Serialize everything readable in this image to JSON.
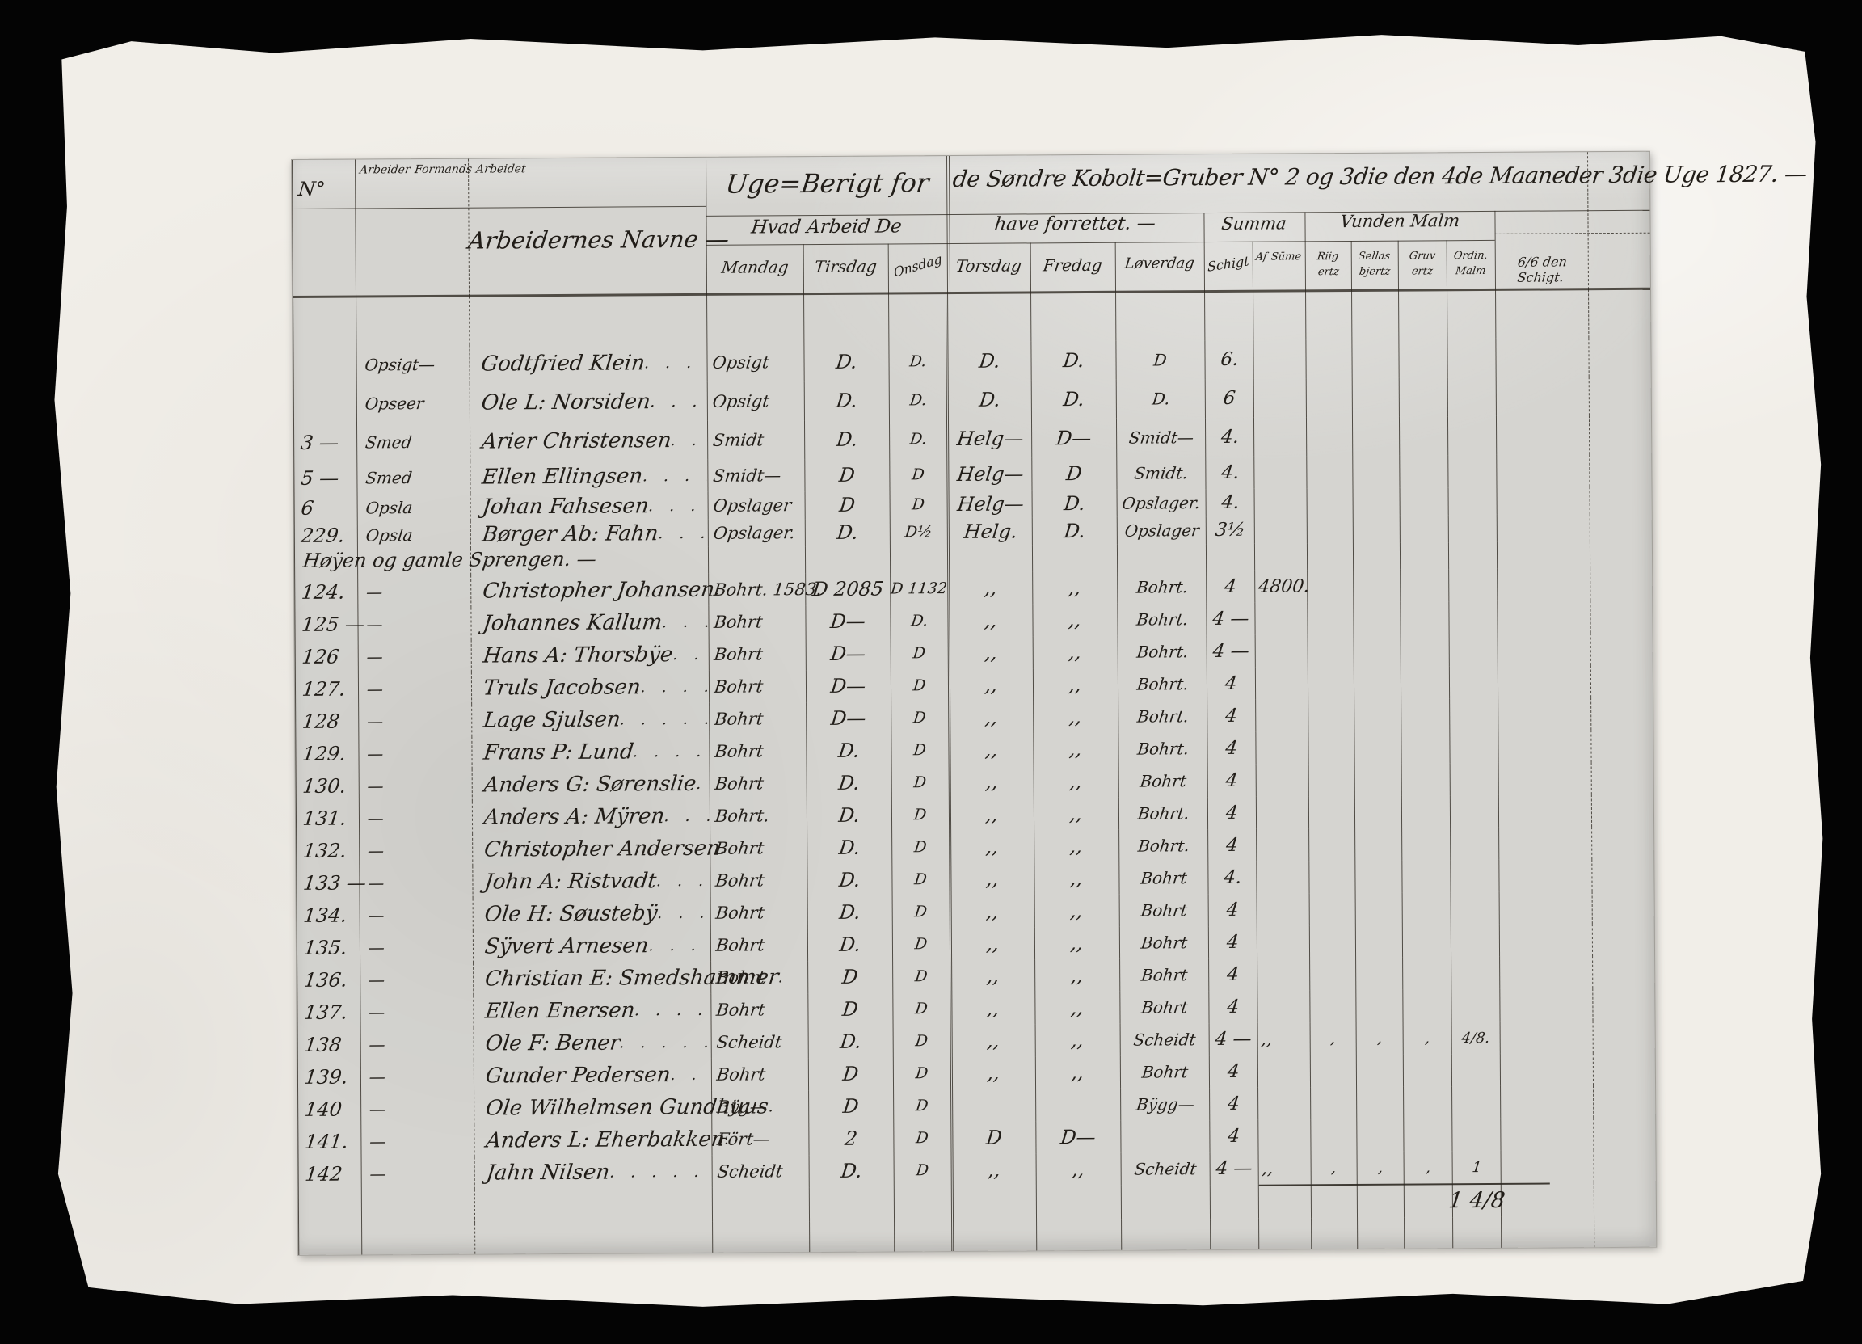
{
  "document": {
    "colors": {
      "background": "#040404",
      "paper": "#f1eee8",
      "page": "#d5d4d0",
      "ink": "#211d18",
      "rule_line": "#2a251e"
    },
    "header": {
      "no_header": "N°",
      "role_header": [
        "Arbeider",
        "Formands",
        "Arbeidet"
      ],
      "navne_header": "Arbeidernes Navne —",
      "title_left": "Uge=Berigt for",
      "title_right": "de Søndre Kobolt=Gruber N° 2 og 3die den 4de Maaneder 3die Uge 1827. —",
      "subtitle_left": "Hvad Arbeid De",
      "subtitle_right": "have forrettet. —",
      "summa": "Summa",
      "vunden_malm": "Vunden Malm",
      "day_headers": [
        "Mandag",
        "Tirsdag",
        "Onsdag",
        "Torsdag",
        "Fredag",
        "Løverdag"
      ],
      "schigt_header": "Schigt",
      "afsume_header": [
        "Af",
        "Sūme"
      ],
      "malm_headers": [
        [
          "Riig",
          "ertz"
        ],
        [
          "Sellas",
          "bjertz"
        ],
        [
          "Gruv",
          "ertz"
        ],
        [
          "Ordin.",
          "Malm"
        ]
      ],
      "wide_header": "6/6 den Schigt."
    },
    "section_header": "Høÿen og gamle Sprengen. —",
    "rows": [
      {
        "h": 60
      },
      {
        "h": 48,
        "no": "",
        "role": "Opsigt—",
        "name": "Godtfried Klein",
        "dots": ". . . . . .",
        "man": "Opsigt",
        "tir": "D.",
        "ons": "D.",
        "tor": "D.",
        "fre": "D.",
        "lov": "D",
        "sch": "6."
      },
      {
        "h": 48,
        "no": "",
        "role": "Opseer",
        "name": "Ole L: Norsiden",
        "dots": ". . . . . .",
        "man": "Opsigt",
        "tir": "D.",
        "ons": "D.",
        "tor": "D.",
        "fre": "D.",
        "lov": "D.",
        "sch": "6"
      },
      {
        "h": 48,
        "no": "3 —",
        "role": "Smed",
        "name": "Arier Christensen",
        "dots": ". . . . . . .",
        "man": "Smidt",
        "tir": "D.",
        "ons": "D.",
        "tor": "Helg—",
        "fre": "D—",
        "lov": "Smidt—",
        "sch": "4."
      },
      {
        "h": 40,
        "no": "5 —",
        "role": "Smed",
        "name": "Ellen Ellingsen",
        "dots": ". . . . . . . .",
        "man": "Smidt—",
        "tir": "D",
        "ons": "D",
        "tor": "Helg—",
        "fre": "D",
        "lov": "Smidt.",
        "sch": "4."
      },
      {
        "h": 34,
        "no": "6",
        "role": "Opsla",
        "name": "Johan Fahsesen",
        "dots": ". . . . . .",
        "man": "Opslager",
        "tir": "D",
        "ons": "D",
        "tor": "Helg—",
        "fre": "D.",
        "lov": "Opslager.",
        "sch": "4."
      },
      {
        "h": 34,
        "no": "229.",
        "role": "Opsla",
        "name": "Børger Ab: Fahn",
        "dots": ". . . . . . . .",
        "man": "Opslager.",
        "tir": "D.",
        "ons": "D½",
        "tor": "Helg.",
        "fre": "D.",
        "lov": "Opslager",
        "sch": "3½"
      },
      {
        "h": 33,
        "section": "Høÿen og gamle Sprengen. —"
      },
      {
        "h": 40,
        "no": "124.",
        "role": "—",
        "name": "Christopher Johansen",
        "dots": ". . . . .",
        "man": "Bohrt. 1583.",
        "tir": "D 2085",
        "ons": "D 1132",
        "tor": ",,",
        "fre": ",,",
        "lov": "Bohrt.",
        "sch": "4",
        "af": "4800."
      },
      {
        "h": 40,
        "no": "125 —",
        "role": "—",
        "name": "Johannes Kallum",
        "dots": ". . . . . . .",
        "man": "Bohrt",
        "tir": "D—",
        "ons": "D.",
        "tor": ",,",
        "fre": ",,",
        "lov": "Bohrt.",
        "sch": "4 —"
      },
      {
        "h": 40,
        "no": "126",
        "role": "—",
        "name": "Hans A: Thorsbÿe",
        "dots": ". . . . . . .",
        "man": "Bohrt",
        "tir": "D—",
        "ons": "D",
        "tor": ",,",
        "fre": ",,",
        "lov": "Bohrt.",
        "sch": "4 —"
      },
      {
        "h": 40,
        "no": "127.",
        "role": "—",
        "name": "Truls Jacobsen",
        "dots": ". . . . . .",
        "man": "Bohrt",
        "tir": "D—",
        "ons": "D",
        "tor": ",,",
        "fre": ",,",
        "lov": "Bohrt.",
        "sch": "4"
      },
      {
        "h": 40,
        "no": "128",
        "role": "—",
        "name": "Lage Sjulsen",
        "dots": ". . . . . . . .",
        "man": "Bohrt",
        "tir": "D—",
        "ons": "D",
        "tor": ",,",
        "fre": ",,",
        "lov": "Bohrt.",
        "sch": "4"
      },
      {
        "h": 40,
        "no": "129.",
        "role": "—",
        "name": "Frans P: Lund",
        "dots": ". . . . . . . .",
        "man": "Bohrt",
        "tir": "D.",
        "ons": "D",
        "tor": ",,",
        "fre": ",,",
        "lov": "Bohrt.",
        "sch": "4"
      },
      {
        "h": 40,
        "no": "130.",
        "role": "—",
        "name": "Anders G: Sørenslie",
        "dots": ". . . .",
        "man": "Bohrt",
        "tir": "D.",
        "ons": "D",
        "tor": ",,",
        "fre": ",,",
        "lov": "Bohrt",
        "sch": "4"
      },
      {
        "h": 40,
        "no": "131.",
        "role": "—",
        "name": "Anders A: Mÿren",
        "dots": ". . . . . .",
        "man": "Bohrt.",
        "tir": "D.",
        "ons": "D",
        "tor": ",,",
        "fre": ",,",
        "lov": "Bohrt.",
        "sch": "4"
      },
      {
        "h": 40,
        "no": "132.",
        "role": "—",
        "name": "Christopher Andersen",
        "dots": ". . . . . .",
        "man": "Bohrt",
        "tir": "D.",
        "ons": "D",
        "tor": ",,",
        "fre": ",,",
        "lov": "Bohrt.",
        "sch": "4"
      },
      {
        "h": 40,
        "no": "133 —",
        "role": "—",
        "name": "John A: Ristvadt",
        "dots": ". . . . . . .",
        "man": "Bohrt",
        "tir": "D.",
        "ons": "D",
        "tor": ",,",
        "fre": ",,",
        "lov": "Bohrt",
        "sch": "4."
      },
      {
        "h": 40,
        "no": "134.",
        "role": "—",
        "name": "Ole H: Søustebÿ",
        "dots": ". . . . . . .",
        "man": "Bohrt",
        "tir": "D.",
        "ons": "D",
        "tor": ",,",
        "fre": ",,",
        "lov": "Bohrt",
        "sch": "4"
      },
      {
        "h": 40,
        "no": "135.",
        "role": "—",
        "name": "Sÿvert Arnesen",
        "dots": ". . . . . . .",
        "man": "Bohrt",
        "tir": "D.",
        "ons": "D",
        "tor": ",,",
        "fre": ",,",
        "lov": "Bohrt",
        "sch": "4"
      },
      {
        "h": 40,
        "no": "136.",
        "role": "—",
        "name": "Christian E: Smedshammer",
        "dots": ". . . . .",
        "man": "Bohrt",
        "tir": "D",
        "ons": "D",
        "tor": ",,",
        "fre": ",,",
        "lov": "Bohrt",
        "sch": "4"
      },
      {
        "h": 40,
        "no": "137.",
        "role": "—",
        "name": "Ellen Enersen",
        "dots": ". . . . . . . . .",
        "man": "Bohrt",
        "tir": "D",
        "ons": "D",
        "tor": ",,",
        "fre": ",,",
        "lov": "Bohrt",
        "sch": "4"
      },
      {
        "h": 40,
        "no": "138",
        "role": "—",
        "name": "Ole F: Bener",
        "dots": ". . . . . . . . .",
        "man": "Scheidt",
        "tir": "D.",
        "ons": "D",
        "tor": ",,",
        "fre": ",,",
        "lov": "Scheidt",
        "sch": "4 —",
        "af": ",,",
        "riig": ",",
        "sellas": ",",
        "gruv": ",",
        "ordin": "4/8."
      },
      {
        "h": 40,
        "no": "139.",
        "role": "—",
        "name": "Gunder Pedersen",
        "dots": ". . . . . . . .",
        "man": "Bohrt",
        "tir": "D",
        "ons": "D",
        "tor": ",,",
        "fre": ",,",
        "lov": "Bohrt",
        "sch": "4"
      },
      {
        "h": 40,
        "no": "140",
        "role": "—",
        "name": "Ole Wilhelmsen Gundhuus",
        "dots": ". .",
        "man": "Bÿg—",
        "tir": "D",
        "ons": "D",
        "lov": "Bÿgg—",
        "sch": "4"
      },
      {
        "h": 40,
        "no": "141.",
        "role": "—",
        "name": "Anders L: Eherbakken",
        "dots": ". . . .",
        "man": "Fört—",
        "tir": "2",
        "ons": "D",
        "tor": "D",
        "fre": "D—",
        "sch": "4"
      },
      {
        "h": 40,
        "no": "142",
        "role": "—",
        "name": "Jahn Nilsen",
        "dots": ". . . . . .",
        "man": "Scheidt",
        "tir": "D.",
        "ons": "D",
        "tor": ",,",
        "fre": ",,",
        "lov": "Scheidt",
        "sch": "4 —",
        "af": ",,",
        "riig": ",",
        "sellas": ",",
        "gruv": ",",
        "ordin": "1"
      },
      {
        "h": 42,
        "total": true,
        "ordin": "1 4/8"
      },
      {
        "h": 38
      }
    ]
  }
}
